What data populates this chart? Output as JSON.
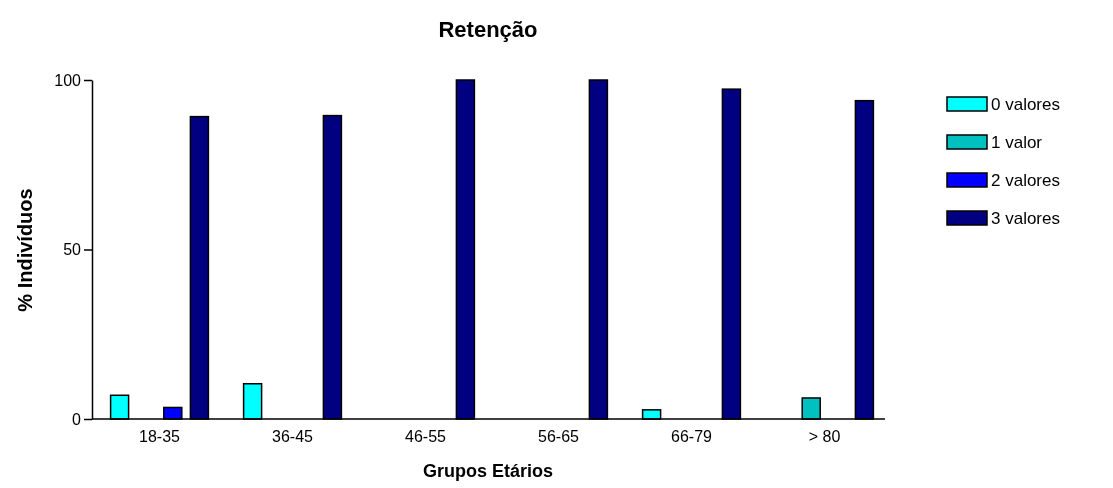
{
  "chart_data": {
    "type": "bar",
    "title": "Retenção",
    "xlabel": "Grupos Etários",
    "ylabel": "% Indivíduos",
    "categories": [
      "18-35",
      "36-45",
      "46-55",
      "56-65",
      "66-79",
      "> 80"
    ],
    "series": [
      {
        "name": "0 valores",
        "color": "#00ffff",
        "values": [
          7,
          10.4,
          0,
          0,
          2.7,
          0
        ]
      },
      {
        "name": "1 valor",
        "color": "#00c0c0",
        "values": [
          0,
          0,
          0,
          0,
          0,
          6.2
        ]
      },
      {
        "name": "2 valores",
        "color": "#0000ff",
        "values": [
          3.4,
          0,
          0,
          0,
          0,
          0
        ]
      },
      {
        "name": "3 valores",
        "color": "#000080",
        "values": [
          89.2,
          89.5,
          100,
          100,
          97.3,
          93.9
        ]
      }
    ],
    "ylim": [
      0,
      100
    ],
    "yticks": [
      0,
      50,
      100
    ],
    "grid": false,
    "legend": "top right"
  }
}
